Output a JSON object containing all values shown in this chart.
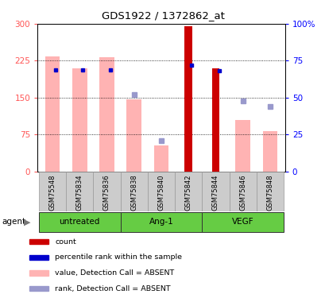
{
  "title": "GDS1922 / 1372862_at",
  "samples": [
    "GSM75548",
    "GSM75834",
    "GSM75836",
    "GSM75838",
    "GSM75840",
    "GSM75842",
    "GSM75844",
    "GSM75846",
    "GSM75848"
  ],
  "value_bars": [
    233,
    210,
    232,
    146,
    52,
    0,
    0,
    105,
    82
  ],
  "value_bar_color": "#ffb3b3",
  "count_bars": [
    0,
    0,
    0,
    0,
    0,
    295,
    210,
    0,
    0
  ],
  "count_bar_color": "#cc0000",
  "rank_pcts": [
    69,
    69,
    69,
    0,
    0,
    72,
    68,
    0,
    0
  ],
  "rank_dot_color": "#0000cc",
  "rank_absent_pcts": [
    0,
    0,
    0,
    52,
    21,
    0,
    0,
    48,
    44
  ],
  "rank_absent_dot_color": "#9999cc",
  "ylim_left": [
    0,
    300
  ],
  "ylim_right": [
    0,
    100
  ],
  "yticks_left": [
    0,
    75,
    150,
    225,
    300
  ],
  "yticks_right": [
    0,
    25,
    50,
    75,
    100
  ],
  "yticklabels_right": [
    "0",
    "25",
    "50",
    "75",
    "100%"
  ],
  "left_tick_color": "#ff5555",
  "right_tick_color": "#0000ff",
  "group_info": [
    {
      "label": "untreated",
      "start": 0,
      "end": 2
    },
    {
      "label": "Ang-1",
      "start": 3,
      "end": 5
    },
    {
      "label": "VEGF",
      "start": 6,
      "end": 8
    }
  ],
  "green_color": "#66cc44",
  "sample_bg": "#cccccc",
  "legend_items": [
    {
      "label": "count",
      "color": "#cc0000"
    },
    {
      "label": "percentile rank within the sample",
      "color": "#0000cc"
    },
    {
      "label": "value, Detection Call = ABSENT",
      "color": "#ffb3b3"
    },
    {
      "label": "rank, Detection Call = ABSENT",
      "color": "#9999cc"
    }
  ]
}
